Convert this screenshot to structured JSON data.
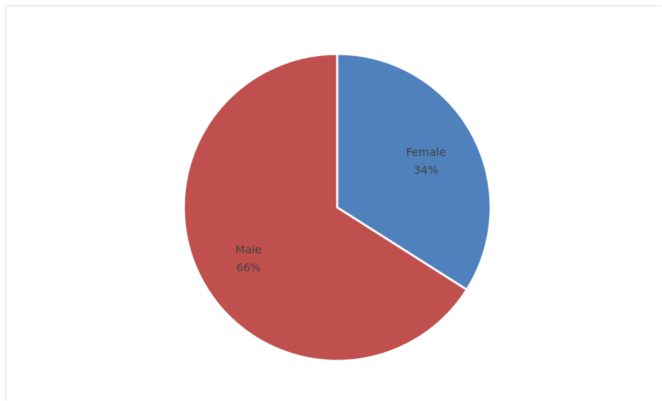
{
  "chart_data": {
    "type": "pie",
    "title": "",
    "start_angle_deg": 0,
    "direction": "clockwise",
    "slices": [
      {
        "label": "Female",
        "value": 34,
        "value_label": "34%",
        "color": "#4f81bd"
      },
      {
        "label": "Male",
        "value": 66,
        "value_label": "66%",
        "color": "#c0504d"
      }
    ],
    "slice_border_color": "#ffffff",
    "legend": "none"
  }
}
